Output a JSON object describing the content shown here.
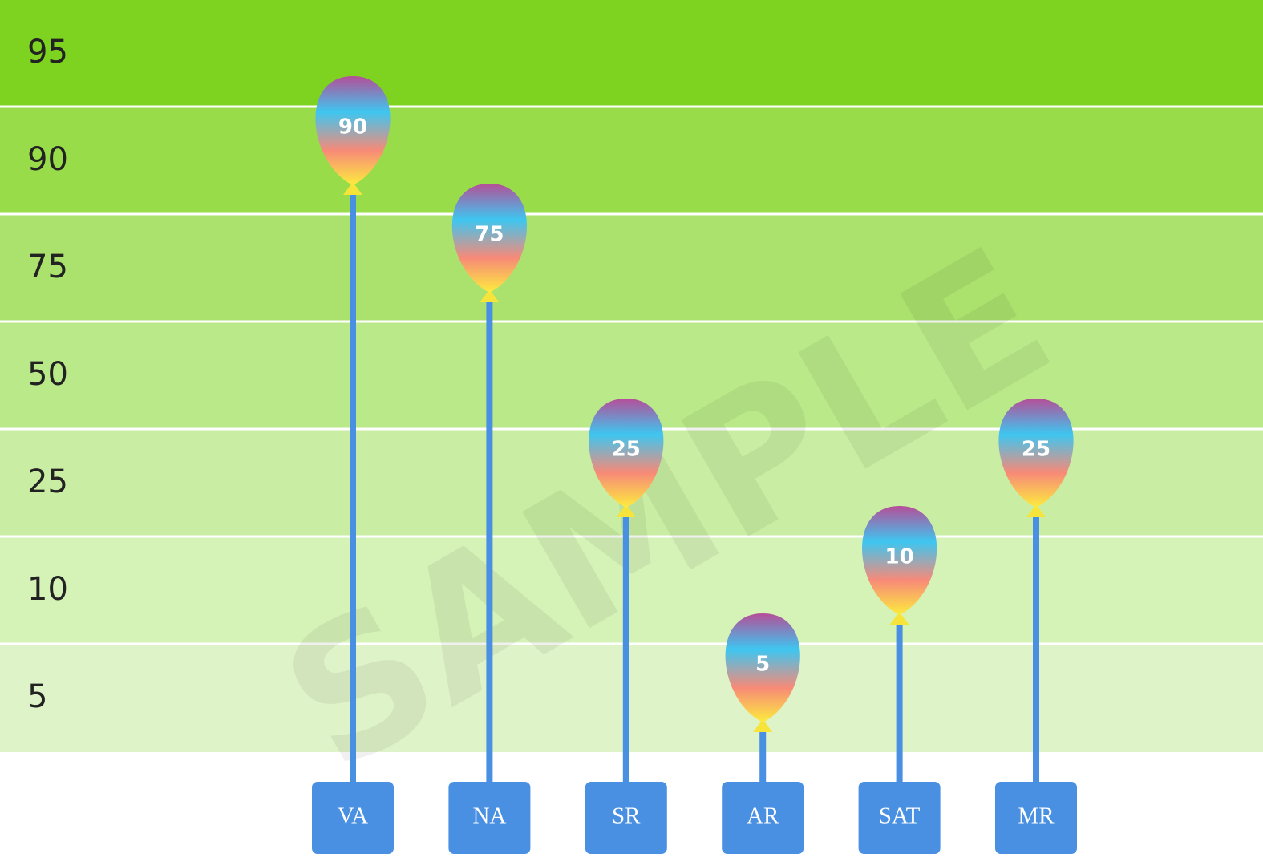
{
  "chart_data": {
    "type": "balloon",
    "categories": [
      "VA",
      "NA",
      "SR",
      "AR",
      "SAT",
      "MR"
    ],
    "values": [
      90,
      75,
      25,
      5,
      10,
      25
    ],
    "color": "#4a90e2",
    "ylim": [
      5,
      95
    ],
    "yticks": [
      95,
      90,
      75,
      50,
      25,
      10,
      5
    ],
    "band_colors": [
      "#7ed321",
      "#98dc4a",
      "#abe26d",
      "#bae98a",
      "#c9eea3",
      "#d5f2b7",
      "#dff3c8"
    ],
    "watermark": "SAMPLE"
  }
}
